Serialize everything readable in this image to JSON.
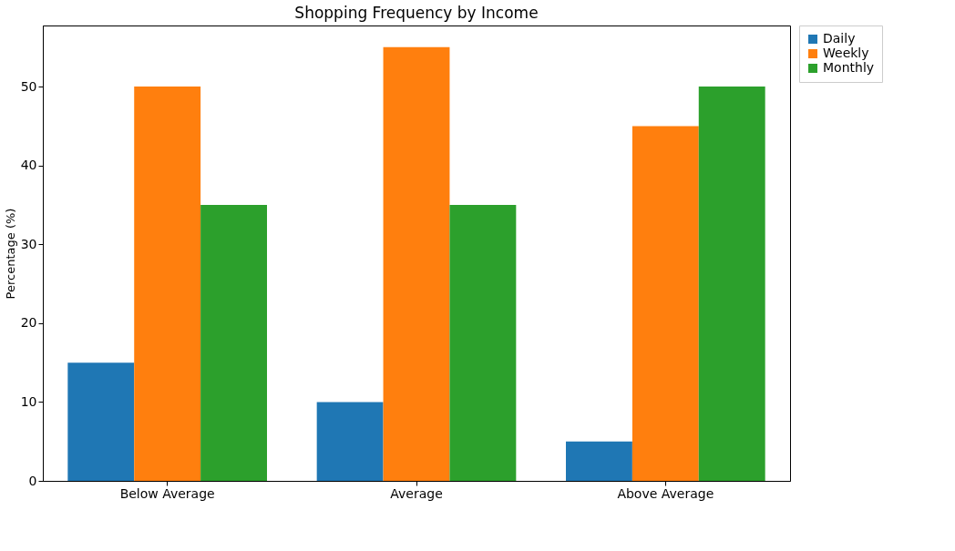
{
  "chart_data": {
    "type": "bar",
    "title": "Shopping Frequency by Income",
    "ylabel": "Percentage (%)",
    "categories": [
      "Below Average",
      "Average",
      "Above Average"
    ],
    "series": [
      {
        "name": "Daily",
        "color": "#1f77b4",
        "values": [
          15,
          10,
          5
        ]
      },
      {
        "name": "Weekly",
        "color": "#ff7f0e",
        "values": [
          50,
          55,
          45
        ]
      },
      {
        "name": "Monthly",
        "color": "#2ca02c",
        "values": [
          35,
          35,
          50
        ]
      }
    ],
    "ylim": [
      0,
      57.75
    ],
    "yticks": [
      0,
      10,
      20,
      30,
      40,
      50
    ],
    "grid": false,
    "legend": "top right"
  }
}
